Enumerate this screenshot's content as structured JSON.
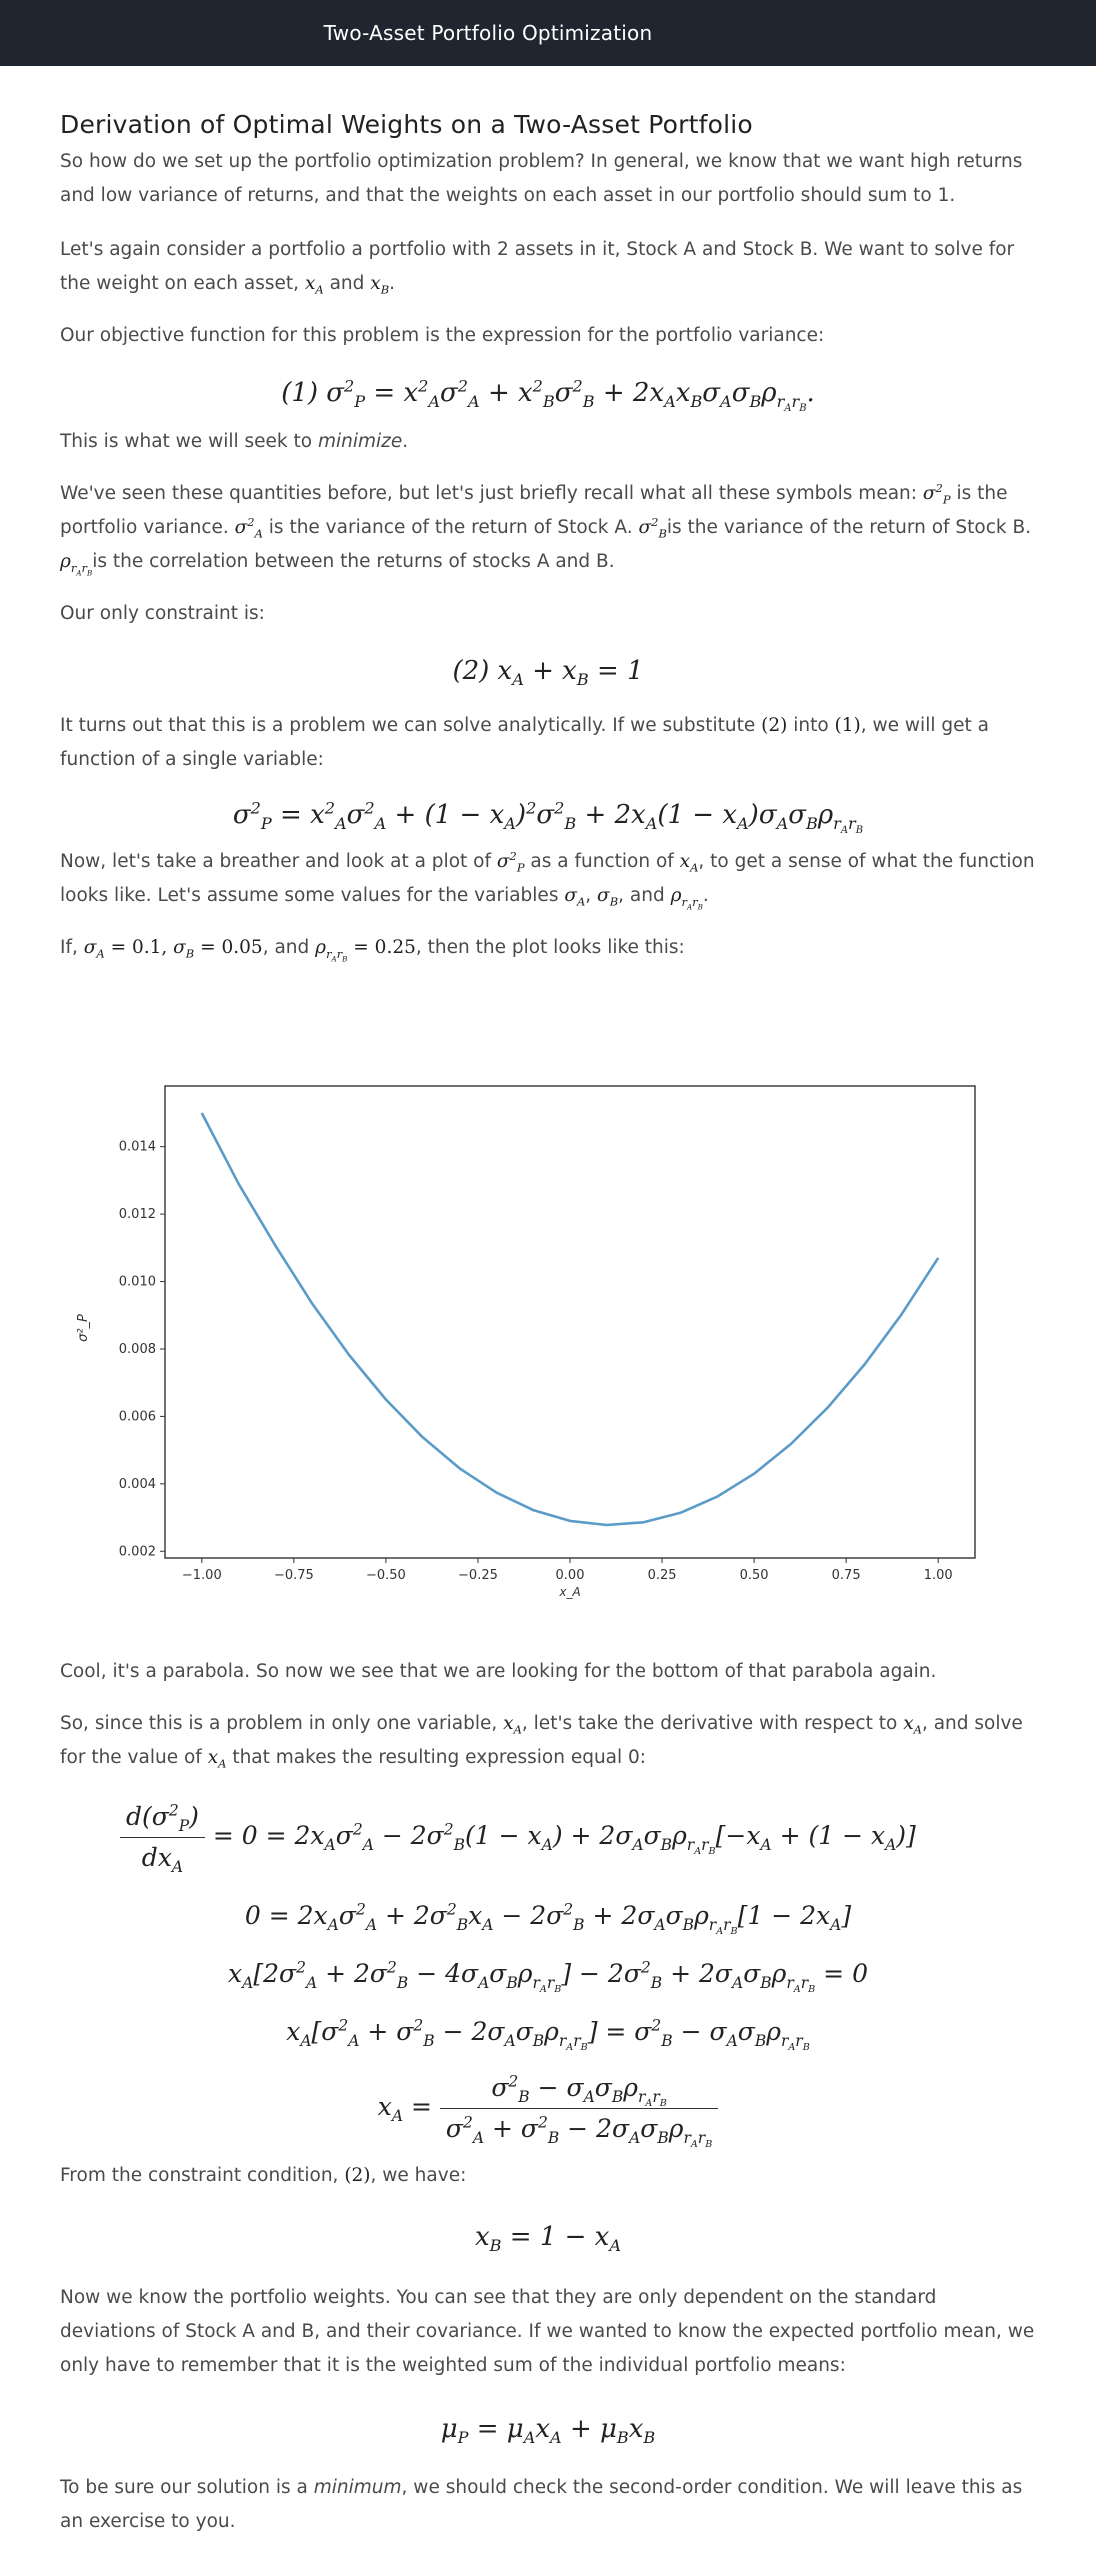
{
  "header": {
    "title": "Two-Asset Portfolio Optimization"
  },
  "section_title": "Derivation of Optimal Weights on a Two-Asset Portfolio",
  "paragraphs": {
    "p1": "So how do we set up the portfolio optimization problem? In general, we know that we want high returns and low variance of returns, and that the weights on each asset in our portfolio should sum to 1.",
    "p2a": "Let's again consider a portfolio a portfolio with 2 assets in it, Stock A and Stock B. We want to solve for the weight on each asset,",
    "p2b": "and",
    "p3": "Our objective function for this problem is the expression for the portfolio variance:",
    "p4a": "This is what we will seek to",
    "p4b": "minimize",
    "p5a": "We've seen these quantities before, but let's just briefly recall what all these symbols mean:",
    "p5b": "is the portfolio variance.",
    "p5c": "is the variance of the return of Stock A.",
    "p5d": "is the variance of the return of Stock B.",
    "p5e": "is the correlation between the returns of stocks A and B.",
    "p6": "Our only constraint is:",
    "p7a": "It turns out that this is a problem we can solve analytically. If we substitute",
    "p7b": "into",
    "p7c": ", we will get a function of a single variable:",
    "p8a": "Now, let's take a breather and look at a plot of",
    "p8b": "as a function of",
    "p8c": ", to get a sense of what the function looks like. Let's assume some values for the variables",
    "p8d": ", and",
    "p9a": "If,",
    "p9b": ", and",
    "p9c": ", then the plot looks like this:",
    "p10": "Cool, it's a parabola. So now we see that we are looking for the bottom of that parabola again.",
    "p11a": "So, since this is a problem in only one variable,",
    "p11b": ", let's take the derivative with respect to",
    "p11c": ", and solve for the value of",
    "p11d": "that makes the resulting expression equal 0:",
    "p12a": "From the constraint condition,",
    "p12b": ", we have:",
    "p13": "Now we know the portfolio weights. You can see that they are only dependent on the standard deviations of Stock A and B, and their covariance. If we wanted to know the expected portfolio mean, we only have to remember that it is the weighted sum of the individual portfolio means:",
    "p14a": "To be sure our solution is a",
    "p14b": "minimum",
    "p14c": ", we should check the second-order condition. We will leave this as an exercise to you."
  },
  "chart_data": {
    "type": "line",
    "xlabel": "x_A",
    "ylabel": "σ²_P",
    "xlim": [
      -1.1,
      1.1
    ],
    "ylim": [
      0.0018,
      0.0158
    ],
    "xticks": [
      "−1.00",
      "−0.75",
      "−0.50",
      "−0.25",
      "0.00",
      "0.25",
      "0.50",
      "0.75",
      "1.00"
    ],
    "yticks": [
      "0.002",
      "0.004",
      "0.006",
      "0.008",
      "0.010",
      "0.012",
      "0.014"
    ],
    "series": [
      {
        "color": "#5b9bc8",
        "x": [
          -1.0,
          -0.9,
          -0.8,
          -0.7,
          -0.6,
          -0.5,
          -0.4,
          -0.3,
          -0.2,
          -0.1,
          0.0,
          0.1,
          0.2,
          0.3,
          0.4,
          0.5,
          0.6,
          0.7,
          0.8,
          0.9,
          1.0
        ],
        "y": [
          0.015,
          0.0129,
          0.01106,
          0.00934,
          0.00782,
          0.0065,
          0.00538,
          0.00446,
          0.00374,
          0.00322,
          0.0029,
          0.00278,
          0.00286,
          0.00314,
          0.00362,
          0.0043,
          0.00518,
          0.00626,
          0.00754,
          0.00902,
          0.0107
        ]
      }
    ],
    "grid": false
  }
}
